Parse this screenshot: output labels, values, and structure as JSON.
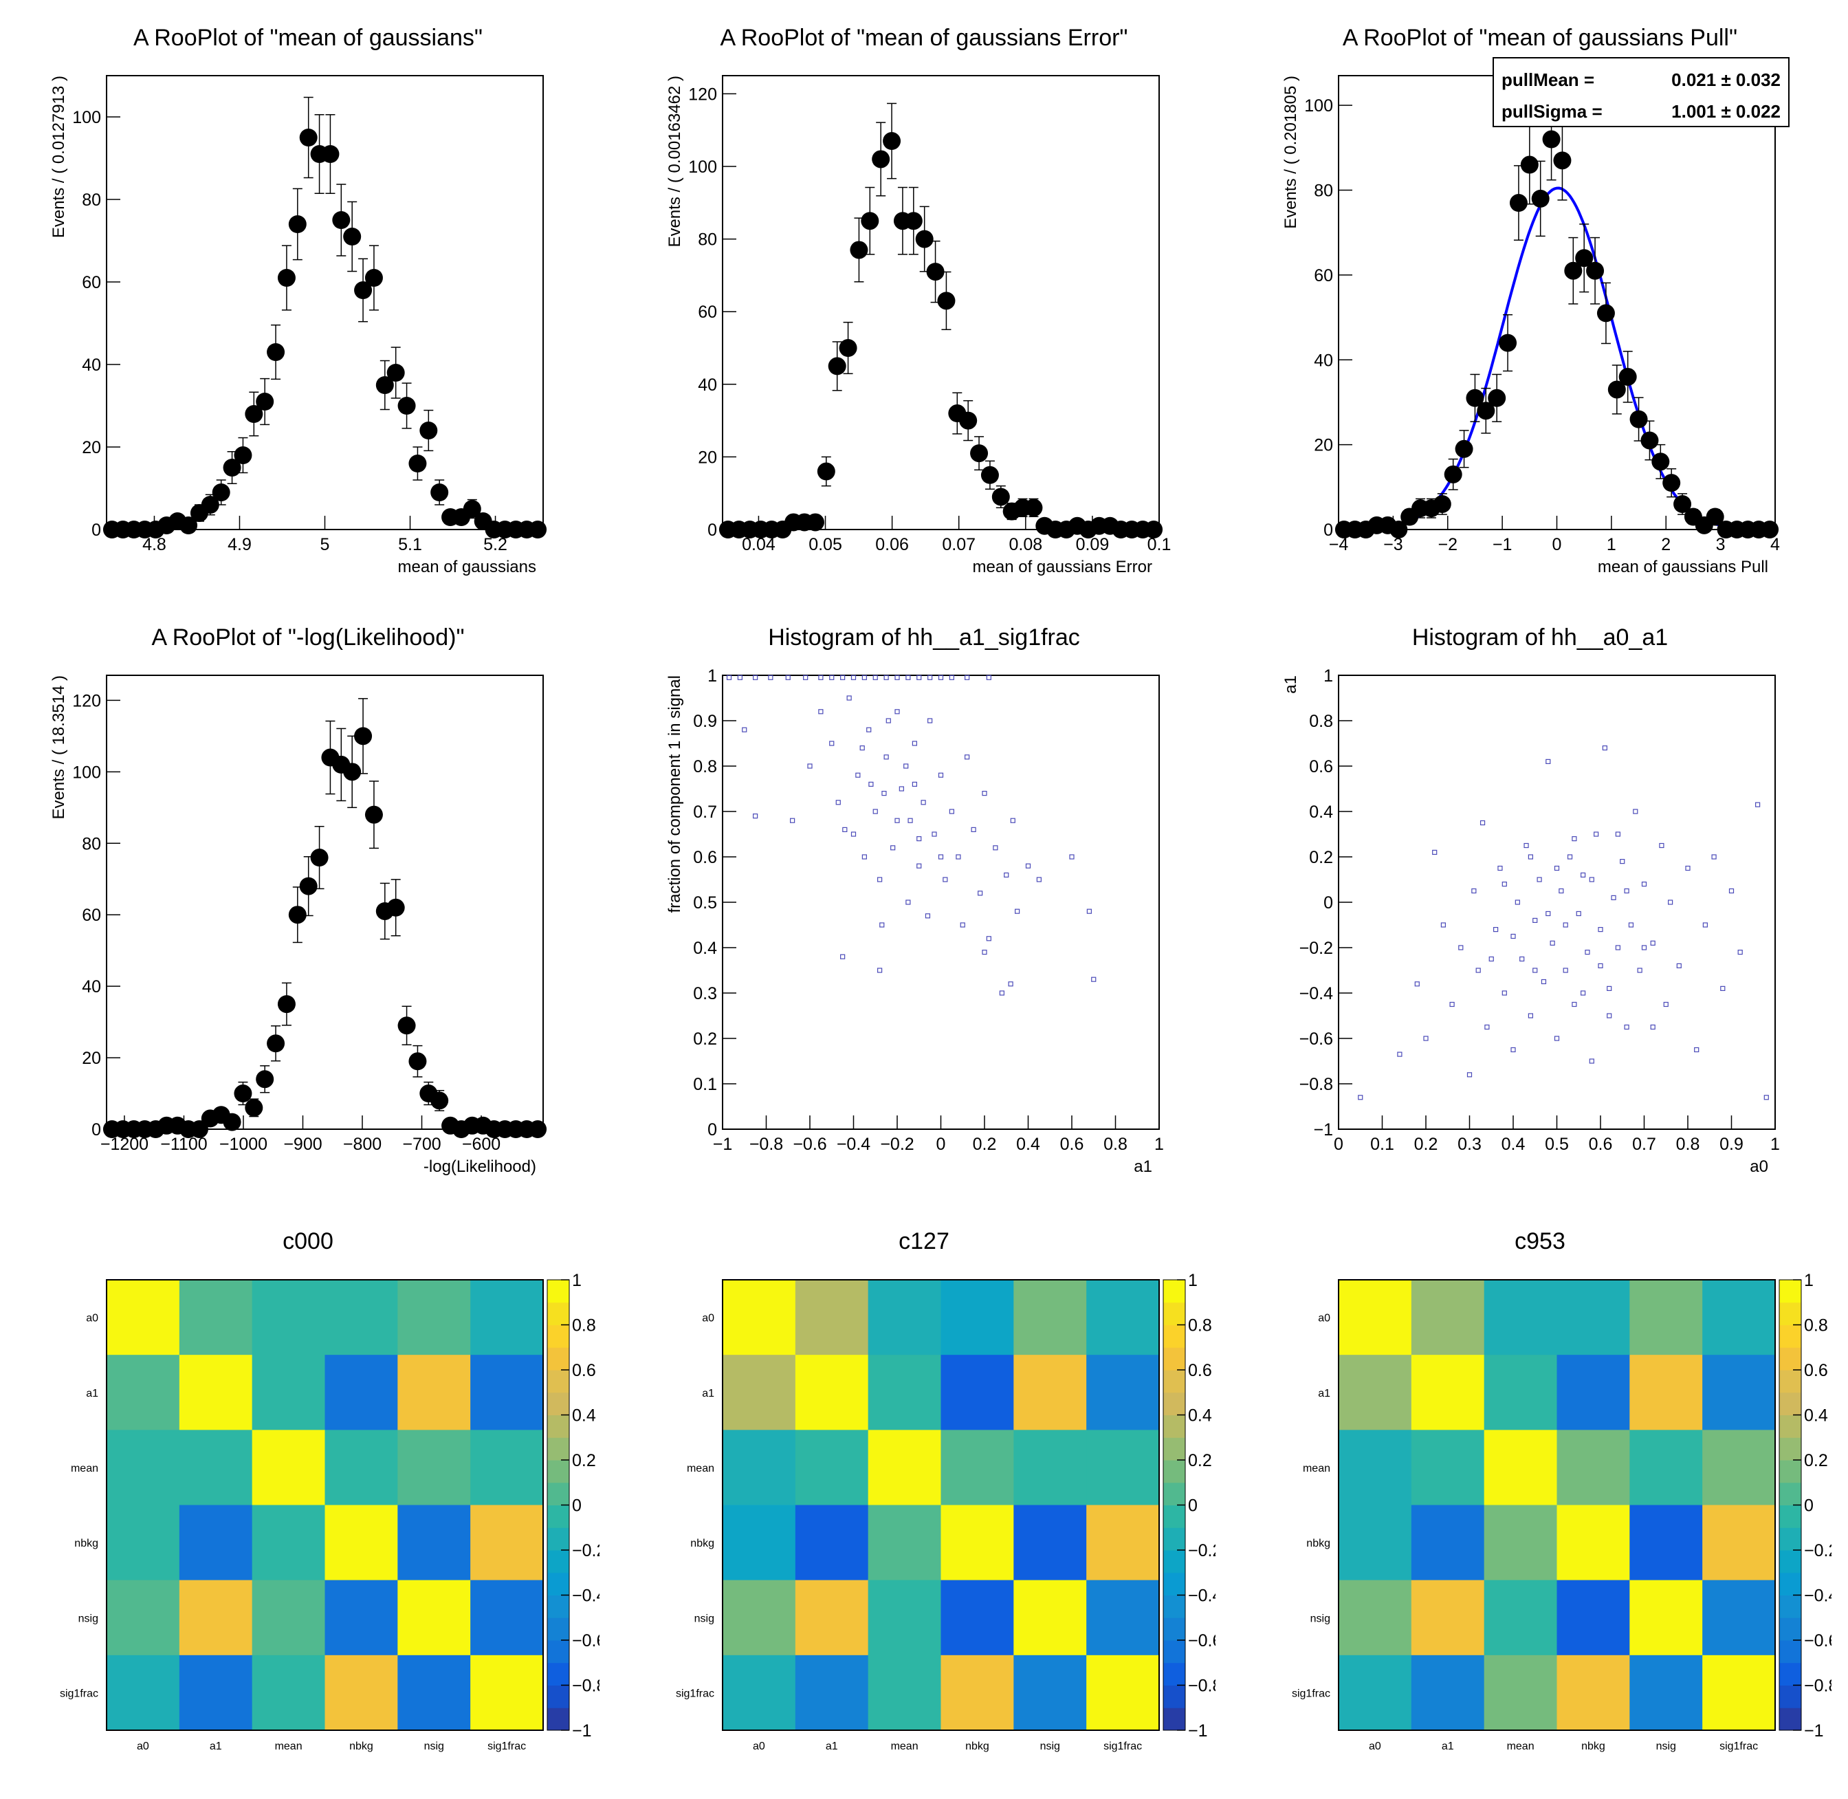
{
  "palette": [
    "#273da6",
    "#1650cb",
    "#0f5fdf",
    "#1274d9",
    "#1482d4",
    "#1390d2",
    "#0a9bd2",
    "#0da5c6",
    "#1eaeb5",
    "#2db6a4",
    "#51b98f",
    "#75bb7d",
    "#96bc72",
    "#b5bb65",
    "#d1b95d",
    "#e0bf50",
    "#f3c33b",
    "#fbd22a",
    "#f6e01f",
    "#f8f80f"
  ],
  "colors": {
    "points": "#000000",
    "fit_curve": "#0000ff",
    "hist2d_box": "#4a4ab8"
  },
  "chart_data": [
    {
      "type": "scatter",
      "id": "mean",
      "title": "A RooPlot of \"mean of gaussians\"",
      "xlabel": "mean of gaussians",
      "ylabel": "Events / ( 0.0127913 )",
      "xlim": [
        4.744,
        5.256
      ],
      "ylim": [
        0,
        110
      ],
      "xticks": [
        "4.8",
        "4.9",
        "5",
        "5.1",
        "5.2"
      ],
      "yticks": [
        "0",
        "20",
        "40",
        "60",
        "80",
        "100"
      ],
      "values": [
        0,
        0,
        0,
        0,
        0,
        1,
        2,
        1,
        4,
        6,
        9,
        15,
        18,
        28,
        31,
        43,
        61,
        74,
        95,
        91,
        91,
        75,
        71,
        58,
        61,
        35,
        38,
        30,
        16,
        24,
        9,
        3,
        3,
        5,
        2,
        0,
        0,
        0,
        0,
        0
      ]
    },
    {
      "type": "scatter",
      "id": "err",
      "title": "A RooPlot of \"mean of gaussians Error\"",
      "xlabel": "mean of gaussians Error",
      "ylabel": "Events / ( 0.00163462 )",
      "xlim": [
        0.0346,
        0.1
      ],
      "ylim": [
        0,
        125
      ],
      "xticks": [
        "0.04",
        "0.05",
        "0.06",
        "0.07",
        "0.08",
        "0.09",
        "0.1"
      ],
      "yticks": [
        "0",
        "20",
        "40",
        "60",
        "80",
        "100",
        "120"
      ],
      "values": [
        0,
        0,
        0,
        0,
        0,
        0,
        2,
        2,
        2,
        16,
        45,
        50,
        77,
        85,
        102,
        107,
        85,
        85,
        80,
        71,
        63,
        32,
        30,
        21,
        15,
        9,
        5,
        6,
        6,
        1,
        0,
        0,
        1,
        0,
        1,
        1,
        0,
        0,
        0,
        0
      ]
    },
    {
      "type": "scatter",
      "id": "pull",
      "title": "A RooPlot of \"mean of gaussians Pull\"",
      "xlabel": "mean of gaussians Pull",
      "ylabel": "Events / ( 0.201805 )",
      "xlim": [
        -4,
        4
      ],
      "ylim": [
        0,
        107
      ],
      "xticks": [
        "−4",
        "−3",
        "−2",
        "−1",
        "0",
        "1",
        "2",
        "3",
        "4"
      ],
      "yticks": [
        "0",
        "20",
        "40",
        "60",
        "80",
        "100"
      ],
      "values": [
        0,
        0,
        0,
        1,
        1,
        0,
        3,
        5,
        5,
        6,
        13,
        19,
        31,
        28,
        31,
        44,
        77,
        86,
        78,
        92,
        87,
        61,
        64,
        61,
        51,
        33,
        36,
        26,
        21,
        16,
        11,
        6,
        3,
        1,
        3,
        0,
        0,
        0,
        0,
        0
      ],
      "fit": {
        "mean": 0.021,
        "sigma": 1.001,
        "peak": 80.5
      },
      "stats": [
        {
          "label": "pullMean = ",
          "value": "0.021 ± 0.032"
        },
        {
          "label": "pullSigma = ",
          "value": "1.001 ± 0.022"
        }
      ]
    },
    {
      "type": "scatter",
      "id": "nll",
      "title": "A RooPlot of \"-log(Likelihood)\"",
      "xlabel": "-log(Likelihood)",
      "ylabel": "Events / ( 18.3514 )",
      "xlim": [
        -1230,
        -496
      ],
      "ylim": [
        0,
        127
      ],
      "xticks": [
        "−1200",
        "−1100",
        "−1000",
        "−900",
        "−800",
        "−700",
        "−600"
      ],
      "yticks": [
        "0",
        "20",
        "40",
        "60",
        "80",
        "100",
        "120"
      ],
      "values": [
        0,
        0,
        0,
        0,
        0,
        1,
        1,
        0,
        0,
        3,
        4,
        2,
        10,
        6,
        14,
        24,
        35,
        60,
        68,
        76,
        104,
        102,
        100,
        110,
        88,
        61,
        62,
        29,
        19,
        10,
        8,
        1,
        0,
        1,
        1,
        0,
        0,
        0,
        0,
        0
      ]
    },
    {
      "type": "heatmap",
      "id": "h_a1_sig1frac",
      "title": "Histogram of hh__a1_sig1frac",
      "xlabel": "a1",
      "ylabel": "fraction of component 1 in signal",
      "xlim": [
        -1,
        1
      ],
      "ylim": [
        0,
        1
      ],
      "xticks": [
        "−1",
        "−0.8",
        "−0.6",
        "−0.4",
        "−0.2",
        "0",
        "0.2",
        "0.4",
        "0.6",
        "0.8",
        "1"
      ],
      "yticks": [
        "0",
        "0.1",
        "0.2",
        "0.3",
        "0.4",
        "0.5",
        "0.6",
        "0.7",
        "0.8",
        "0.9",
        "1"
      ],
      "points": [
        [
          -0.97,
          0.995
        ],
        [
          -0.92,
          0.995
        ],
        [
          -0.85,
          0.995
        ],
        [
          -0.78,
          0.995
        ],
        [
          -0.7,
          0.995
        ],
        [
          -0.62,
          0.995
        ],
        [
          -0.55,
          0.995
        ],
        [
          -0.5,
          0.995
        ],
        [
          -0.45,
          0.995
        ],
        [
          -0.4,
          0.995
        ],
        [
          -0.35,
          0.995
        ],
        [
          -0.3,
          0.995
        ],
        [
          -0.25,
          0.995
        ],
        [
          -0.2,
          0.995
        ],
        [
          -0.15,
          0.995
        ],
        [
          -0.1,
          0.995
        ],
        [
          -0.05,
          0.995
        ],
        [
          0,
          0.995
        ],
        [
          0.05,
          0.995
        ],
        [
          0.12,
          0.995
        ],
        [
          0.22,
          0.995
        ],
        [
          -0.9,
          0.88
        ],
        [
          -0.85,
          0.69
        ],
        [
          -0.68,
          0.68
        ],
        [
          -0.6,
          0.8
        ],
        [
          -0.55,
          0.92
        ],
        [
          -0.5,
          0.85
        ],
        [
          -0.47,
          0.72
        ],
        [
          -0.45,
          0.38
        ],
        [
          -0.42,
          0.95
        ],
        [
          -0.4,
          0.65
        ],
        [
          -0.38,
          0.78
        ],
        [
          -0.35,
          0.6
        ],
        [
          -0.33,
          0.88
        ],
        [
          -0.3,
          0.7
        ],
        [
          -0.28,
          0.55
        ],
        [
          -0.27,
          0.45
        ],
        [
          -0.25,
          0.82
        ],
        [
          -0.22,
          0.62
        ],
        [
          -0.2,
          0.92
        ],
        [
          -0.18,
          0.75
        ],
        [
          -0.15,
          0.5
        ],
        [
          -0.14,
          0.68
        ],
        [
          -0.12,
          0.85
        ],
        [
          -0.1,
          0.58
        ],
        [
          -0.08,
          0.72
        ],
        [
          -0.06,
          0.47
        ],
        [
          -0.05,
          0.9
        ],
        [
          -0.03,
          0.65
        ],
        [
          0,
          0.78
        ],
        [
          0.02,
          0.55
        ],
        [
          0.05,
          0.7
        ],
        [
          0.08,
          0.6
        ],
        [
          0.1,
          0.45
        ],
        [
          0.12,
          0.82
        ],
        [
          0.15,
          0.66
        ],
        [
          0.18,
          0.52
        ],
        [
          0.2,
          0.74
        ],
        [
          0.22,
          0.42
        ],
        [
          0.25,
          0.62
        ],
        [
          0.28,
          0.3
        ],
        [
          0.3,
          0.56
        ],
        [
          0.33,
          0.68
        ],
        [
          0.35,
          0.48
        ],
        [
          0.4,
          0.58
        ],
        [
          0.45,
          0.55
        ],
        [
          0.6,
          0.6
        ],
        [
          0.68,
          0.48
        ],
        [
          0.7,
          0.33
        ],
        [
          0.32,
          0.32
        ],
        [
          -0.28,
          0.35
        ],
        [
          0.2,
          0.39
        ],
        [
          -0.36,
          0.84
        ],
        [
          -0.24,
          0.9
        ],
        [
          -0.16,
          0.8
        ],
        [
          -0.32,
          0.76
        ],
        [
          -0.44,
          0.66
        ],
        [
          -0.2,
          0.68
        ],
        [
          -0.1,
          0.64
        ],
        [
          0.0,
          0.6
        ],
        [
          -0.26,
          0.74
        ],
        [
          -0.12,
          0.76
        ]
      ]
    },
    {
      "type": "heatmap",
      "id": "h_a0_a1",
      "title": "Histogram of hh__a0_a1",
      "xlabel": "a0",
      "ylabel": "a1",
      "xlim": [
        0,
        1
      ],
      "ylim": [
        -1,
        1
      ],
      "xticks": [
        "0",
        "0.1",
        "0.2",
        "0.3",
        "0.4",
        "0.5",
        "0.6",
        "0.7",
        "0.8",
        "0.9",
        "1"
      ],
      "yticks": [
        "−1",
        "−0.8",
        "−0.6",
        "−0.4",
        "−0.2",
        "0",
        "0.2",
        "0.4",
        "0.6",
        "0.8",
        "1"
      ],
      "points": [
        [
          0.05,
          -0.86
        ],
        [
          0.14,
          -0.67
        ],
        [
          0.18,
          -0.36
        ],
        [
          0.2,
          -0.6
        ],
        [
          0.22,
          0.22
        ],
        [
          0.24,
          -0.1
        ],
        [
          0.26,
          -0.45
        ],
        [
          0.28,
          -0.2
        ],
        [
          0.3,
          -0.76
        ],
        [
          0.31,
          0.05
        ],
        [
          0.32,
          -0.3
        ],
        [
          0.33,
          0.35
        ],
        [
          0.34,
          -0.55
        ],
        [
          0.36,
          -0.12
        ],
        [
          0.37,
          0.15
        ],
        [
          0.38,
          -0.4
        ],
        [
          0.4,
          -0.65
        ],
        [
          0.41,
          0.0
        ],
        [
          0.42,
          -0.25
        ],
        [
          0.43,
          0.25
        ],
        [
          0.44,
          -0.5
        ],
        [
          0.45,
          -0.08
        ],
        [
          0.46,
          0.1
        ],
        [
          0.47,
          -0.35
        ],
        [
          0.48,
          0.62
        ],
        [
          0.49,
          -0.18
        ],
        [
          0.5,
          -0.6
        ],
        [
          0.51,
          0.05
        ],
        [
          0.52,
          -0.3
        ],
        [
          0.53,
          0.2
        ],
        [
          0.54,
          -0.45
        ],
        [
          0.55,
          -0.05
        ],
        [
          0.56,
          0.12
        ],
        [
          0.57,
          -0.22
        ],
        [
          0.58,
          -0.7
        ],
        [
          0.59,
          0.3
        ],
        [
          0.6,
          -0.12
        ],
        [
          0.61,
          0.68
        ],
        [
          0.62,
          -0.38
        ],
        [
          0.63,
          0.02
        ],
        [
          0.64,
          -0.2
        ],
        [
          0.65,
          0.18
        ],
        [
          0.66,
          -0.55
        ],
        [
          0.67,
          -0.1
        ],
        [
          0.68,
          0.4
        ],
        [
          0.69,
          -0.3
        ],
        [
          0.7,
          0.08
        ],
        [
          0.72,
          -0.18
        ],
        [
          0.74,
          0.25
        ],
        [
          0.75,
          -0.45
        ],
        [
          0.76,
          0.0
        ],
        [
          0.78,
          -0.28
        ],
        [
          0.8,
          0.15
        ],
        [
          0.82,
          -0.65
        ],
        [
          0.84,
          -0.1
        ],
        [
          0.86,
          0.2
        ],
        [
          0.88,
          -0.38
        ],
        [
          0.9,
          0.05
        ],
        [
          0.92,
          -0.22
        ],
        [
          0.96,
          0.43
        ],
        [
          0.98,
          -0.86
        ],
        [
          0.44,
          0.2
        ],
        [
          0.52,
          -0.1
        ],
        [
          0.58,
          0.1
        ],
        [
          0.48,
          -0.05
        ],
        [
          0.6,
          -0.28
        ],
        [
          0.5,
          0.15
        ],
        [
          0.56,
          -0.4
        ],
        [
          0.4,
          -0.15
        ],
        [
          0.66,
          0.05
        ],
        [
          0.62,
          -0.5
        ],
        [
          0.35,
          -0.25
        ],
        [
          0.7,
          -0.2
        ],
        [
          0.54,
          0.28
        ],
        [
          0.45,
          -0.3
        ],
        [
          0.64,
          0.3
        ],
        [
          0.38,
          0.08
        ],
        [
          0.72,
          -0.55
        ]
      ]
    },
    {
      "type": "heatmap",
      "id": "c000",
      "title": "c000",
      "labels": [
        "a0",
        "a1",
        "mean",
        "nbkg",
        "nsig",
        "sig1frac"
      ],
      "zlim": [
        -1,
        1
      ],
      "zticks": [
        "1",
        "0.8",
        "0.6",
        "0.4",
        "0.2",
        "0",
        "−0.2",
        "−0.4",
        "−0.6",
        "−0.8",
        "−1"
      ],
      "matrix": [
        [
          1,
          0.05,
          -0.05,
          -0.05,
          0.05,
          -0.15
        ],
        [
          0.05,
          1,
          -0.05,
          -0.65,
          0.65,
          -0.65
        ],
        [
          -0.05,
          -0.05,
          1,
          -0.05,
          0.05,
          -0.05
        ],
        [
          -0.05,
          -0.65,
          -0.05,
          1,
          -0.65,
          0.65
        ],
        [
          0.05,
          0.65,
          0.05,
          -0.65,
          1,
          -0.65
        ],
        [
          -0.15,
          -0.65,
          -0.05,
          0.65,
          -0.65,
          1
        ]
      ]
    },
    {
      "type": "heatmap",
      "id": "c127",
      "title": "c127",
      "labels": [
        "a0",
        "a1",
        "mean",
        "nbkg",
        "nsig",
        "sig1frac"
      ],
      "zlim": [
        -1,
        1
      ],
      "zticks": [
        "1",
        "0.8",
        "0.6",
        "0.4",
        "0.2",
        "0",
        "−0.2",
        "−0.4",
        "−0.6",
        "−0.8",
        "−1"
      ],
      "matrix": [
        [
          1,
          0.35,
          -0.15,
          -0.25,
          0.15,
          -0.15
        ],
        [
          0.35,
          1,
          -0.05,
          -0.75,
          0.65,
          -0.55
        ],
        [
          -0.15,
          -0.05,
          1,
          0.05,
          -0.05,
          -0.05
        ],
        [
          -0.25,
          -0.75,
          0.05,
          1,
          -0.75,
          0.65
        ],
        [
          0.15,
          0.65,
          -0.05,
          -0.75,
          1,
          -0.55
        ],
        [
          -0.15,
          -0.55,
          -0.05,
          0.65,
          -0.55,
          1
        ]
      ]
    },
    {
      "type": "heatmap",
      "id": "c953",
      "title": "c953",
      "labels": [
        "a0",
        "a1",
        "mean",
        "nbkg",
        "nsig",
        "sig1frac"
      ],
      "zlim": [
        -1,
        1
      ],
      "zticks": [
        "1",
        "0.8",
        "0.6",
        "0.4",
        "0.2",
        "0",
        "−0.2",
        "−0.4",
        "−0.6",
        "−0.8",
        "−1"
      ],
      "matrix": [
        [
          1,
          0.25,
          -0.15,
          -0.15,
          0.15,
          -0.15
        ],
        [
          0.25,
          1,
          -0.05,
          -0.65,
          0.65,
          -0.55
        ],
        [
          -0.15,
          -0.05,
          1,
          0.15,
          -0.05,
          0.15
        ],
        [
          -0.15,
          -0.65,
          0.15,
          1,
          -0.75,
          0.65
        ],
        [
          0.15,
          0.65,
          -0.05,
          -0.75,
          1,
          -0.55
        ],
        [
          -0.15,
          -0.55,
          0.15,
          0.65,
          -0.55,
          1
        ]
      ]
    }
  ]
}
